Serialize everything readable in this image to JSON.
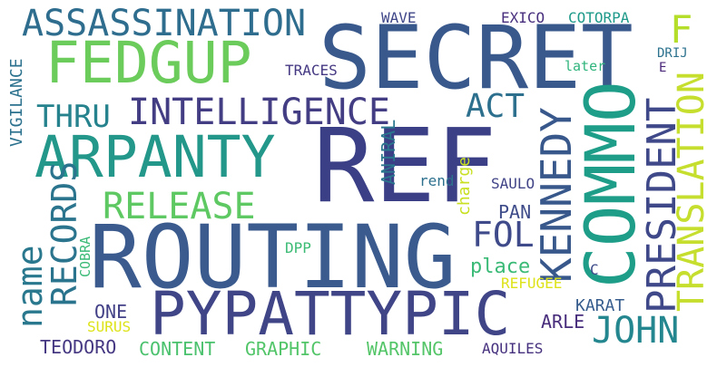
{
  "words": [
    {
      "text": "REF",
      "color": "#3b3f86"
    },
    {
      "text": "SECRET",
      "color": "#39588c"
    },
    {
      "text": "ROUTING",
      "color": "#3b5b8e"
    },
    {
      "text": "PYPATTYPIC",
      "color": "#404587"
    },
    {
      "text": "ARPANTY",
      "color": "#22978a"
    },
    {
      "text": "FEDGUP",
      "color": "#6bcb5b"
    },
    {
      "text": "COMMO",
      "color": "#1e9e89"
    },
    {
      "text": "ASSASSINATION",
      "color": "#2f6d8e"
    },
    {
      "text": "INTELLIGENCE",
      "color": "#433d84"
    },
    {
      "text": "RELEASE",
      "color": "#5ec962"
    },
    {
      "text": "KENNEDY",
      "color": "#38588c"
    },
    {
      "text": "PRESIDENT",
      "color": "#3f4989"
    },
    {
      "text": "TRANSLATION",
      "color": "#c6de2d"
    },
    {
      "text": "F",
      "color": "#b5de2b"
    },
    {
      "text": "JOHN",
      "color": "#24868e"
    },
    {
      "text": "THRU",
      "color": "#26838e"
    },
    {
      "text": "ACT",
      "color": "#2d708e"
    },
    {
      "text": "RECORDS",
      "color": "#2b748e"
    },
    {
      "text": "name",
      "color": "#2a788e"
    },
    {
      "text": "FOL",
      "color": "#3e4a89"
    },
    {
      "text": "ONE",
      "color": "#424086"
    },
    {
      "text": "TEODORO",
      "color": "#453781"
    },
    {
      "text": "CONTENT",
      "color": "#4ac16d"
    },
    {
      "text": "GRAPHIC",
      "color": "#52c569"
    },
    {
      "text": "WARNING",
      "color": "#54c568"
    },
    {
      "text": "ARLE",
      "color": "#472d7b"
    },
    {
      "text": "KARAT",
      "color": "#365d8d"
    },
    {
      "text": "AQUILES",
      "color": "#46317e"
    },
    {
      "text": "REFUGEE",
      "color": "#dde318"
    },
    {
      "text": "SURUS",
      "color": "#dde318"
    },
    {
      "text": "COBRA",
      "color": "#3aba76"
    },
    {
      "text": "DPP",
      "color": "#3cbb75"
    },
    {
      "text": "PAN",
      "color": "#3e4c8a"
    },
    {
      "text": "place",
      "color": "#3aba76"
    },
    {
      "text": "C",
      "color": "#3e4c8a"
    },
    {
      "text": "SAULO",
      "color": "#414487"
    },
    {
      "text": "rend",
      "color": "#2d708e"
    },
    {
      "text": "charge",
      "color": "#c8e020"
    },
    {
      "text": "ANIRAL",
      "color": "#2a778e"
    },
    {
      "text": "VIGILANCE",
      "color": "#2c728e"
    },
    {
      "text": "TRACES",
      "color": "#453882"
    },
    {
      "text": "WAVE",
      "color": "#3f4788"
    },
    {
      "text": "EXICO",
      "color": "#472f7d"
    },
    {
      "text": "COTORPA",
      "color": "#1f9a8a"
    },
    {
      "text": "DRIJ",
      "color": "#2c728e"
    },
    {
      "text": "later",
      "color": "#2fb47c"
    },
    {
      "text": "E",
      "color": "#482677"
    }
  ]
}
